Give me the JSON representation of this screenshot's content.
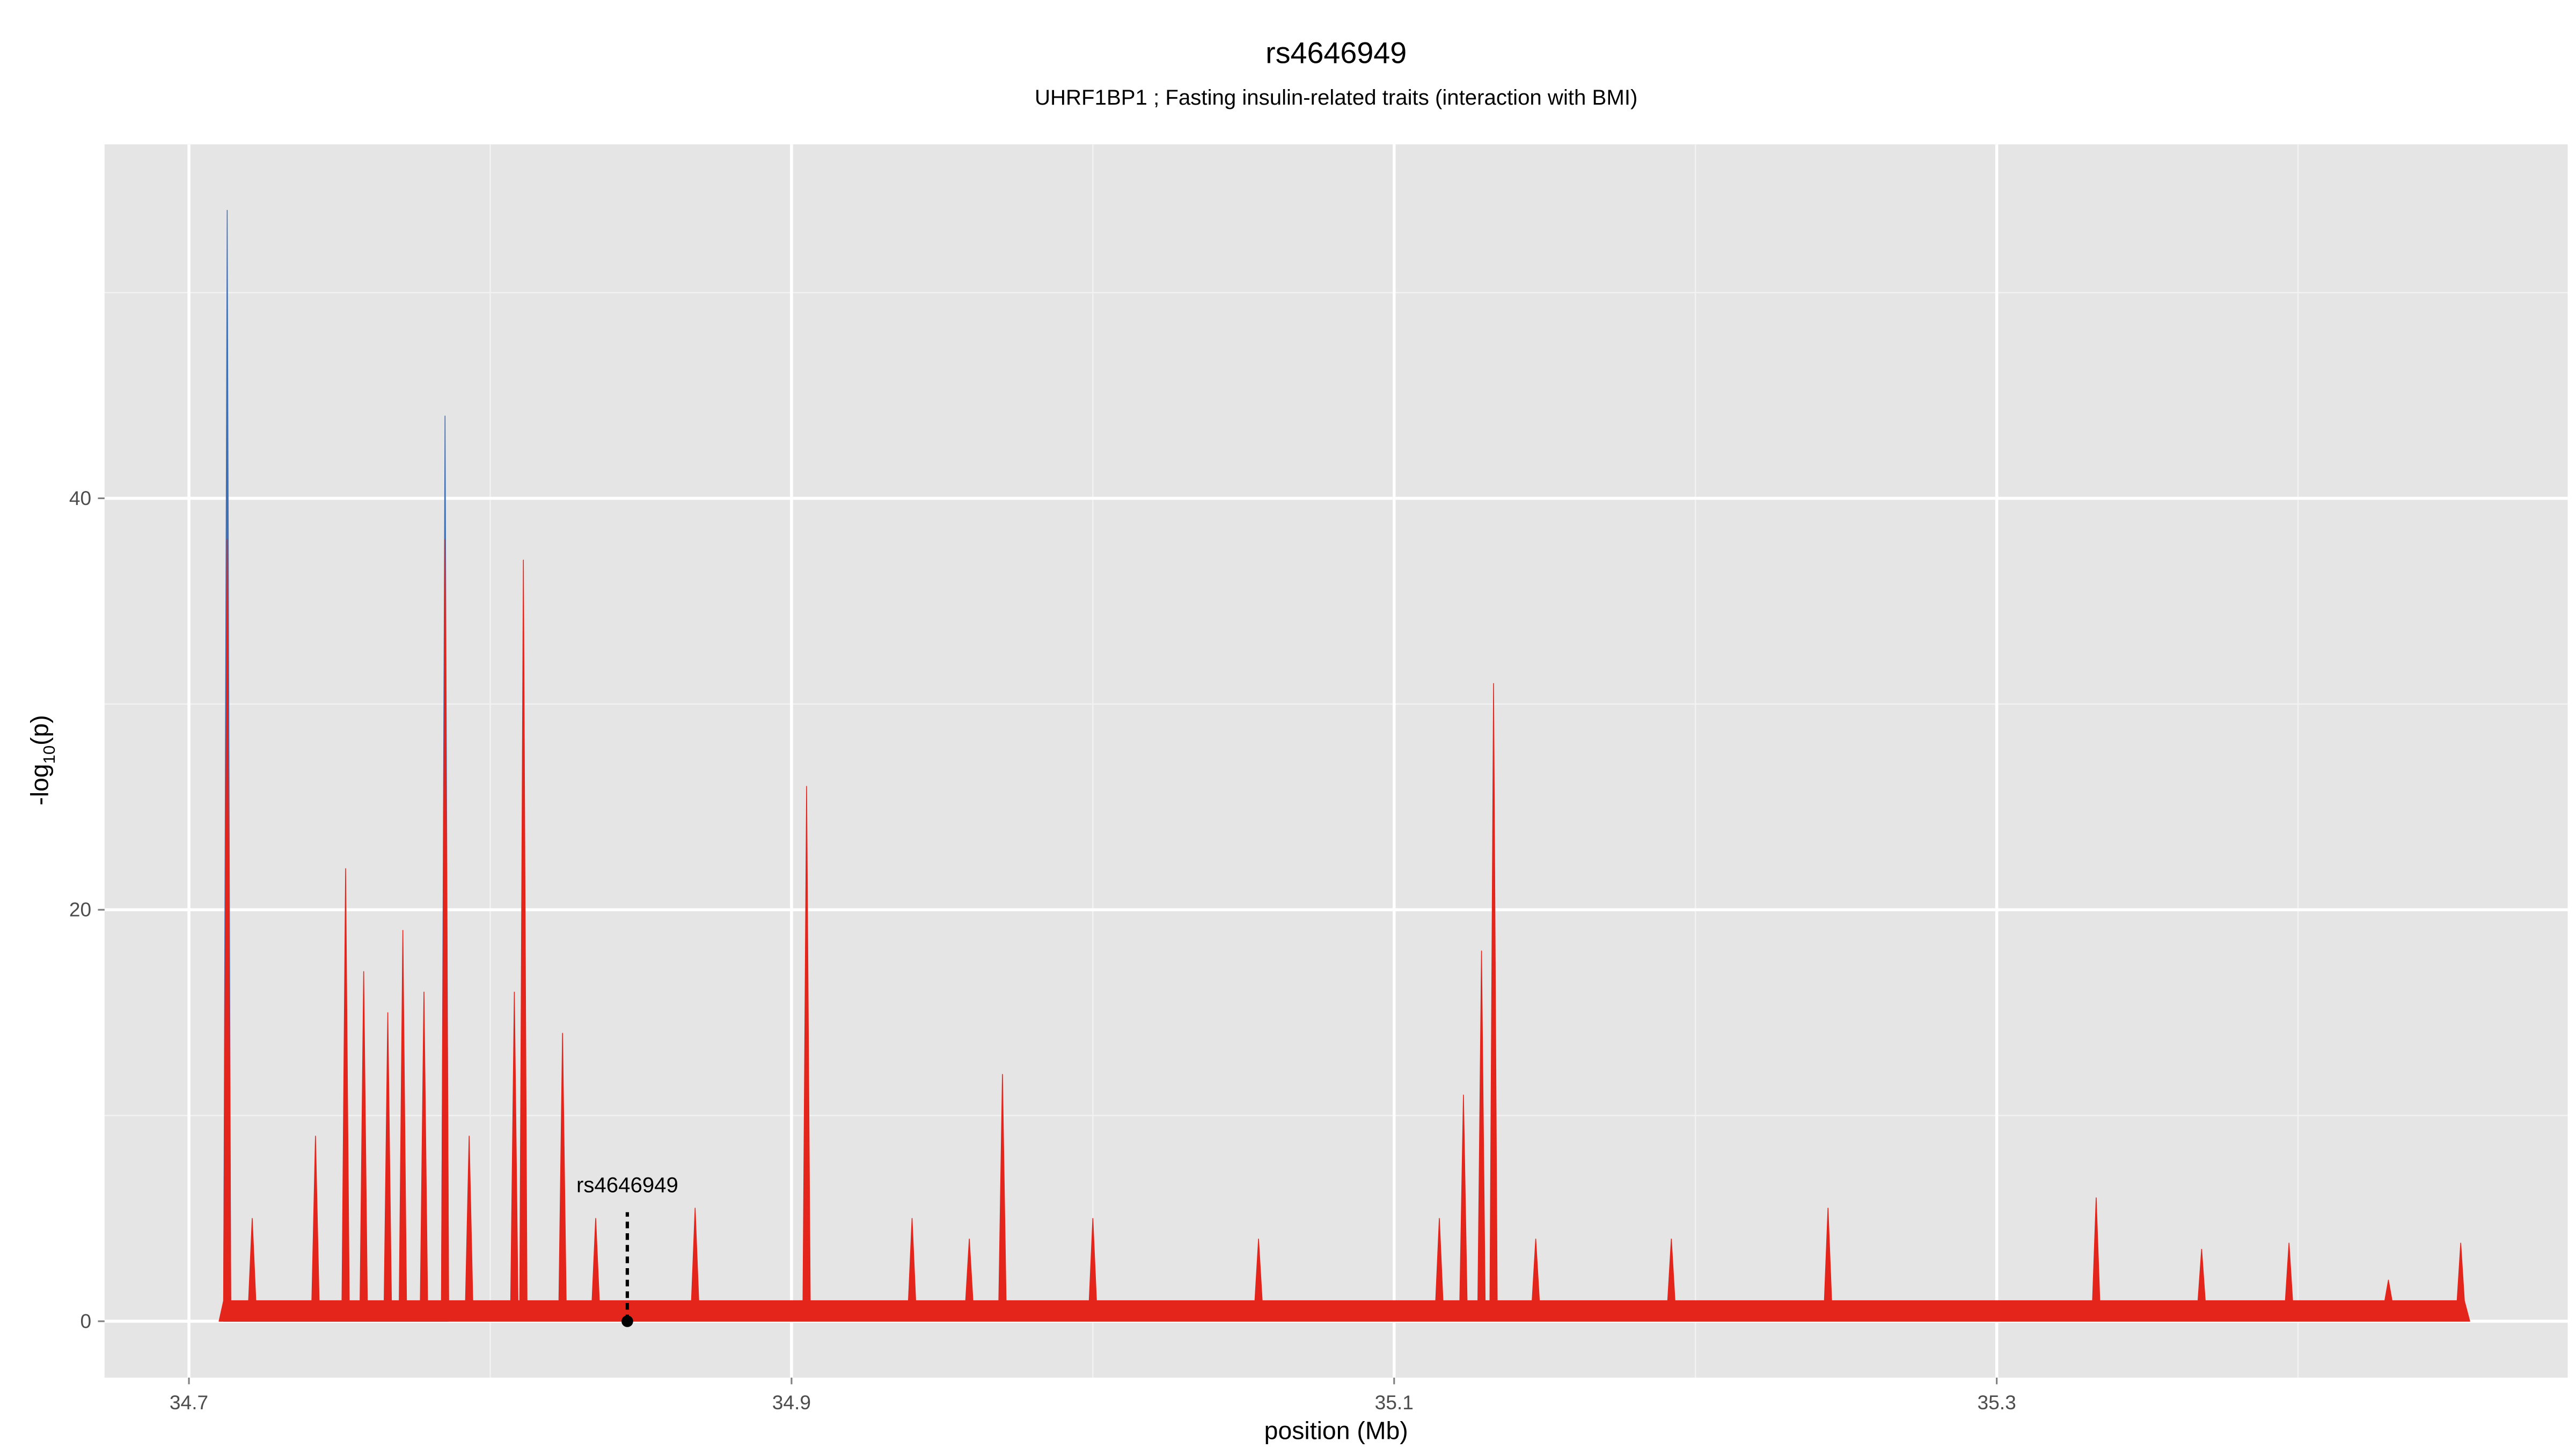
{
  "chart_data": {
    "type": "area",
    "title": "rs4646949",
    "subtitle": "UHRF1BP1 ; Fasting insulin-related traits (interaction with BMI)",
    "x_label": "position (Mb)",
    "y_label": [
      "-log",
      "10",
      "(p)"
    ],
    "xlim": [
      34.672,
      35.4895
    ],
    "ylim": [
      -2.74,
      57.2
    ],
    "xticks": [
      34.7,
      34.9,
      35.1,
      35.3
    ],
    "yticks": [
      0,
      20,
      40
    ],
    "minor_xgrid": [
      34.8,
      35.0,
      35.2,
      35.4
    ],
    "minor_ygrid": [
      10,
      30,
      50
    ],
    "grid": true,
    "x": [
      34.71,
      34.7115,
      34.7127,
      34.7139,
      34.7198,
      34.721,
      34.7222,
      34.7408,
      34.742,
      34.7432,
      34.7508,
      34.752,
      34.7532,
      34.7568,
      34.758,
      34.7592,
      34.7648,
      34.766,
      34.7672,
      34.7698,
      34.771,
      34.7722,
      34.7768,
      34.778,
      34.7792,
      34.7838,
      34.785,
      34.7862,
      34.7918,
      34.793,
      34.7942,
      34.8068,
      34.808,
      34.8092,
      34.8098,
      34.811,
      34.8122,
      34.8228,
      34.824,
      34.8252,
      34.8338,
      34.835,
      34.8362,
      34.8668,
      34.868,
      34.8692,
      34.9038,
      34.905,
      34.9062,
      34.9388,
      34.94,
      34.9412,
      34.9578,
      34.959,
      34.9602,
      34.9688,
      34.97,
      34.9712,
      34.9988,
      35.0,
      35.0012,
      35.0538,
      35.055,
      35.0562,
      35.1138,
      35.115,
      35.1162,
      35.1218,
      35.123,
      35.1242,
      35.1278,
      35.129,
      35.1302,
      35.1318,
      35.133,
      35.1342,
      35.1458,
      35.147,
      35.1482,
      35.1908,
      35.192,
      35.1932,
      35.2428,
      35.244,
      35.2452,
      35.3318,
      35.333,
      35.3342,
      35.3668,
      35.368,
      35.3692,
      35.3958,
      35.397,
      35.3982,
      35.4288,
      35.43,
      35.4312,
      35.4528,
      35.454,
      35.4552,
      35.457
    ],
    "series": [
      {
        "color": "#3f6fb5",
        "x": [
          34.7115,
          34.7127,
          34.7139,
          34.7838,
          34.785,
          34.7862
        ],
        "values": [
          0,
          54,
          0,
          0,
          44,
          0
        ]
      },
      {
        "color": "#e3251c",
        "values": [
          0,
          1,
          38,
          1,
          1,
          5,
          1,
          1,
          9,
          1,
          1,
          22,
          1,
          1,
          17,
          1,
          1,
          15,
          1,
          1,
          19,
          1,
          1,
          16,
          1,
          1,
          38,
          1,
          1,
          9,
          1,
          1,
          16,
          1,
          1,
          37,
          1,
          1,
          14,
          1,
          1,
          5,
          1,
          1,
          5.5,
          1,
          1,
          26,
          1,
          1,
          5,
          1,
          1,
          4,
          1,
          1,
          12,
          1,
          1,
          5,
          1,
          1,
          4,
          1,
          1,
          5,
          1,
          1,
          11,
          1,
          1,
          18,
          1,
          1,
          31,
          1,
          1,
          4,
          1,
          1,
          4,
          1,
          1,
          5.5,
          1,
          1,
          6,
          1,
          1,
          3.5,
          1,
          1,
          3.8,
          1,
          1,
          2,
          1,
          1,
          3.8,
          1,
          0
        ]
      }
    ],
    "annotation": {
      "label": "rs4646949",
      "x": 34.8455,
      "y": 0,
      "line_top": 5.3
    }
  }
}
